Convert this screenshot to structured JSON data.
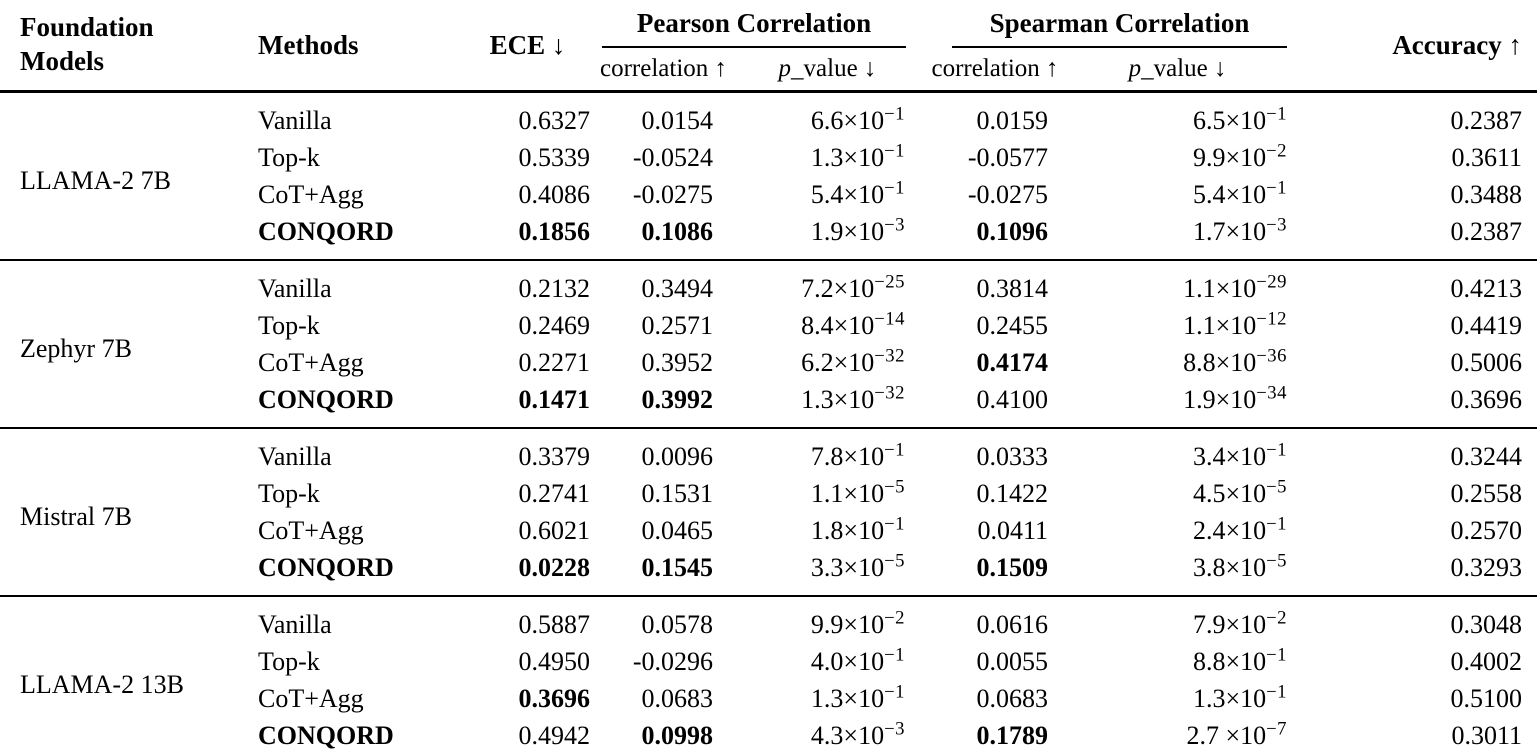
{
  "chart_data": {
    "type": "table",
    "title": "",
    "headers": {
      "foundation_models": "Foundation Models",
      "methods": "Methods",
      "ece": "ECE ↓",
      "pearson": "Pearson Correlation",
      "spearman": "Spearman Correlation",
      "correlation": "correlation ↑",
      "p_italic": "p",
      "p_rest": "_value ↓",
      "accuracy": "Accuracy ↑"
    },
    "notation": {
      "times_ten": "×10"
    },
    "colors": {
      "text": "#000000",
      "background": "#ffffff",
      "rule": "#000000"
    },
    "groups": [
      {
        "model": "LLAMA-2 7B",
        "rows": [
          {
            "method": "Vanilla",
            "ece": "0.6327",
            "pc": "0.0154",
            "pp": [
              "6.6",
              "−1"
            ],
            "sc": "0.0159",
            "sp": [
              "6.5",
              "−1"
            ],
            "acc": "0.2387",
            "bold": []
          },
          {
            "method": "Top-k",
            "ece": "0.5339",
            "pc": "-0.0524",
            "pp": [
              "1.3",
              "−1"
            ],
            "sc": "-0.0577",
            "sp": [
              "9.9",
              "−2"
            ],
            "acc": "0.3611",
            "bold": []
          },
          {
            "method": "CoT+Agg",
            "ece": "0.4086",
            "pc": "-0.0275",
            "pp": [
              "5.4",
              "−1"
            ],
            "sc": "-0.0275",
            "sp": [
              "5.4",
              "−1"
            ],
            "acc": "0.3488",
            "bold": []
          },
          {
            "method": "CONQORD",
            "ece": "0.1856",
            "pc": "0.1086",
            "pp": [
              "1.9",
              "−3"
            ],
            "sc": "0.1096",
            "sp": [
              "1.7",
              "−3"
            ],
            "acc": "0.2387",
            "bold": [
              "method",
              "ece",
              "pc",
              "sc"
            ]
          }
        ]
      },
      {
        "model": "Zephyr 7B",
        "rows": [
          {
            "method": "Vanilla",
            "ece": "0.2132",
            "pc": "0.3494",
            "pp": [
              "7.2",
              "−25"
            ],
            "sc": "0.3814",
            "sp": [
              "1.1",
              "−29"
            ],
            "acc": "0.4213",
            "bold": []
          },
          {
            "method": "Top-k",
            "ece": "0.2469",
            "pc": "0.2571",
            "pp": [
              "8.4",
              "−14"
            ],
            "sc": "0.2455",
            "sp": [
              "1.1",
              "−12"
            ],
            "acc": "0.4419",
            "bold": []
          },
          {
            "method": "CoT+Agg",
            "ece": "0.2271",
            "pc": "0.3952",
            "pp": [
              "6.2",
              "−32"
            ],
            "sc": "0.4174",
            "sp": [
              "8.8",
              "−36"
            ],
            "acc": "0.5006",
            "bold": [
              "sc"
            ]
          },
          {
            "method": "CONQORD",
            "ece": "0.1471",
            "pc": "0.3992",
            "pp": [
              "1.3",
              "−32"
            ],
            "sc": "0.4100",
            "sp": [
              "1.9",
              "−34"
            ],
            "acc": "0.3696",
            "bold": [
              "method",
              "ece",
              "pc"
            ]
          }
        ]
      },
      {
        "model": "Mistral 7B",
        "rows": [
          {
            "method": "Vanilla",
            "ece": "0.3379",
            "pc": "0.0096",
            "pp": [
              "7.8",
              "−1"
            ],
            "sc": "0.0333",
            "sp": [
              "3.4",
              "−1"
            ],
            "acc": "0.3244",
            "bold": []
          },
          {
            "method": "Top-k",
            "ece": "0.2741",
            "pc": "0.1531",
            "pp": [
              "1.1",
              "−5"
            ],
            "sc": "0.1422",
            "sp": [
              "4.5",
              "−5"
            ],
            "acc": "0.2558",
            "bold": []
          },
          {
            "method": "CoT+Agg",
            "ece": "0.6021",
            "pc": "0.0465",
            "pp": [
              "1.8",
              "−1"
            ],
            "sc": "0.0411",
            "sp": [
              "2.4",
              "−1"
            ],
            "acc": "0.2570",
            "bold": []
          },
          {
            "method": "CONQORD",
            "ece": "0.0228",
            "pc": "0.1545",
            "pp": [
              "3.3",
              "−5"
            ],
            "sc": "0.1509",
            "sp": [
              "3.8",
              "−5"
            ],
            "acc": "0.3293",
            "bold": [
              "method",
              "ece",
              "pc",
              "sc"
            ]
          }
        ]
      },
      {
        "model": "LLAMA-2 13B",
        "rows": [
          {
            "method": "Vanilla",
            "ece": "0.5887",
            "pc": "0.0578",
            "pp": [
              "9.9",
              "−2"
            ],
            "sc": "0.0616",
            "sp": [
              "7.9",
              "−2"
            ],
            "acc": "0.3048",
            "bold": []
          },
          {
            "method": "Top-k",
            "ece": "0.4950",
            "pc": "-0.0296",
            "pp": [
              "4.0",
              "−1"
            ],
            "sc": "0.0055",
            "sp": [
              "8.8",
              "−1"
            ],
            "acc": "0.4002",
            "bold": []
          },
          {
            "method": "CoT+Agg",
            "ece": "0.3696",
            "pc": "0.0683",
            "pp": [
              "1.3",
              "−1"
            ],
            "sc": "0.0683",
            "sp": [
              "1.3",
              "−1"
            ],
            "acc": "0.5100",
            "bold": [
              "ece"
            ]
          },
          {
            "method": "CONQORD",
            "ece": "0.4942",
            "pc": "0.0998",
            "pp": [
              "4.3",
              "−3"
            ],
            "sc": "0.1789",
            "sp": [
              "2.7 ",
              "−7"
            ],
            "acc": "0.3011",
            "bold": [
              "method",
              "pc",
              "sc"
            ]
          }
        ]
      }
    ]
  }
}
